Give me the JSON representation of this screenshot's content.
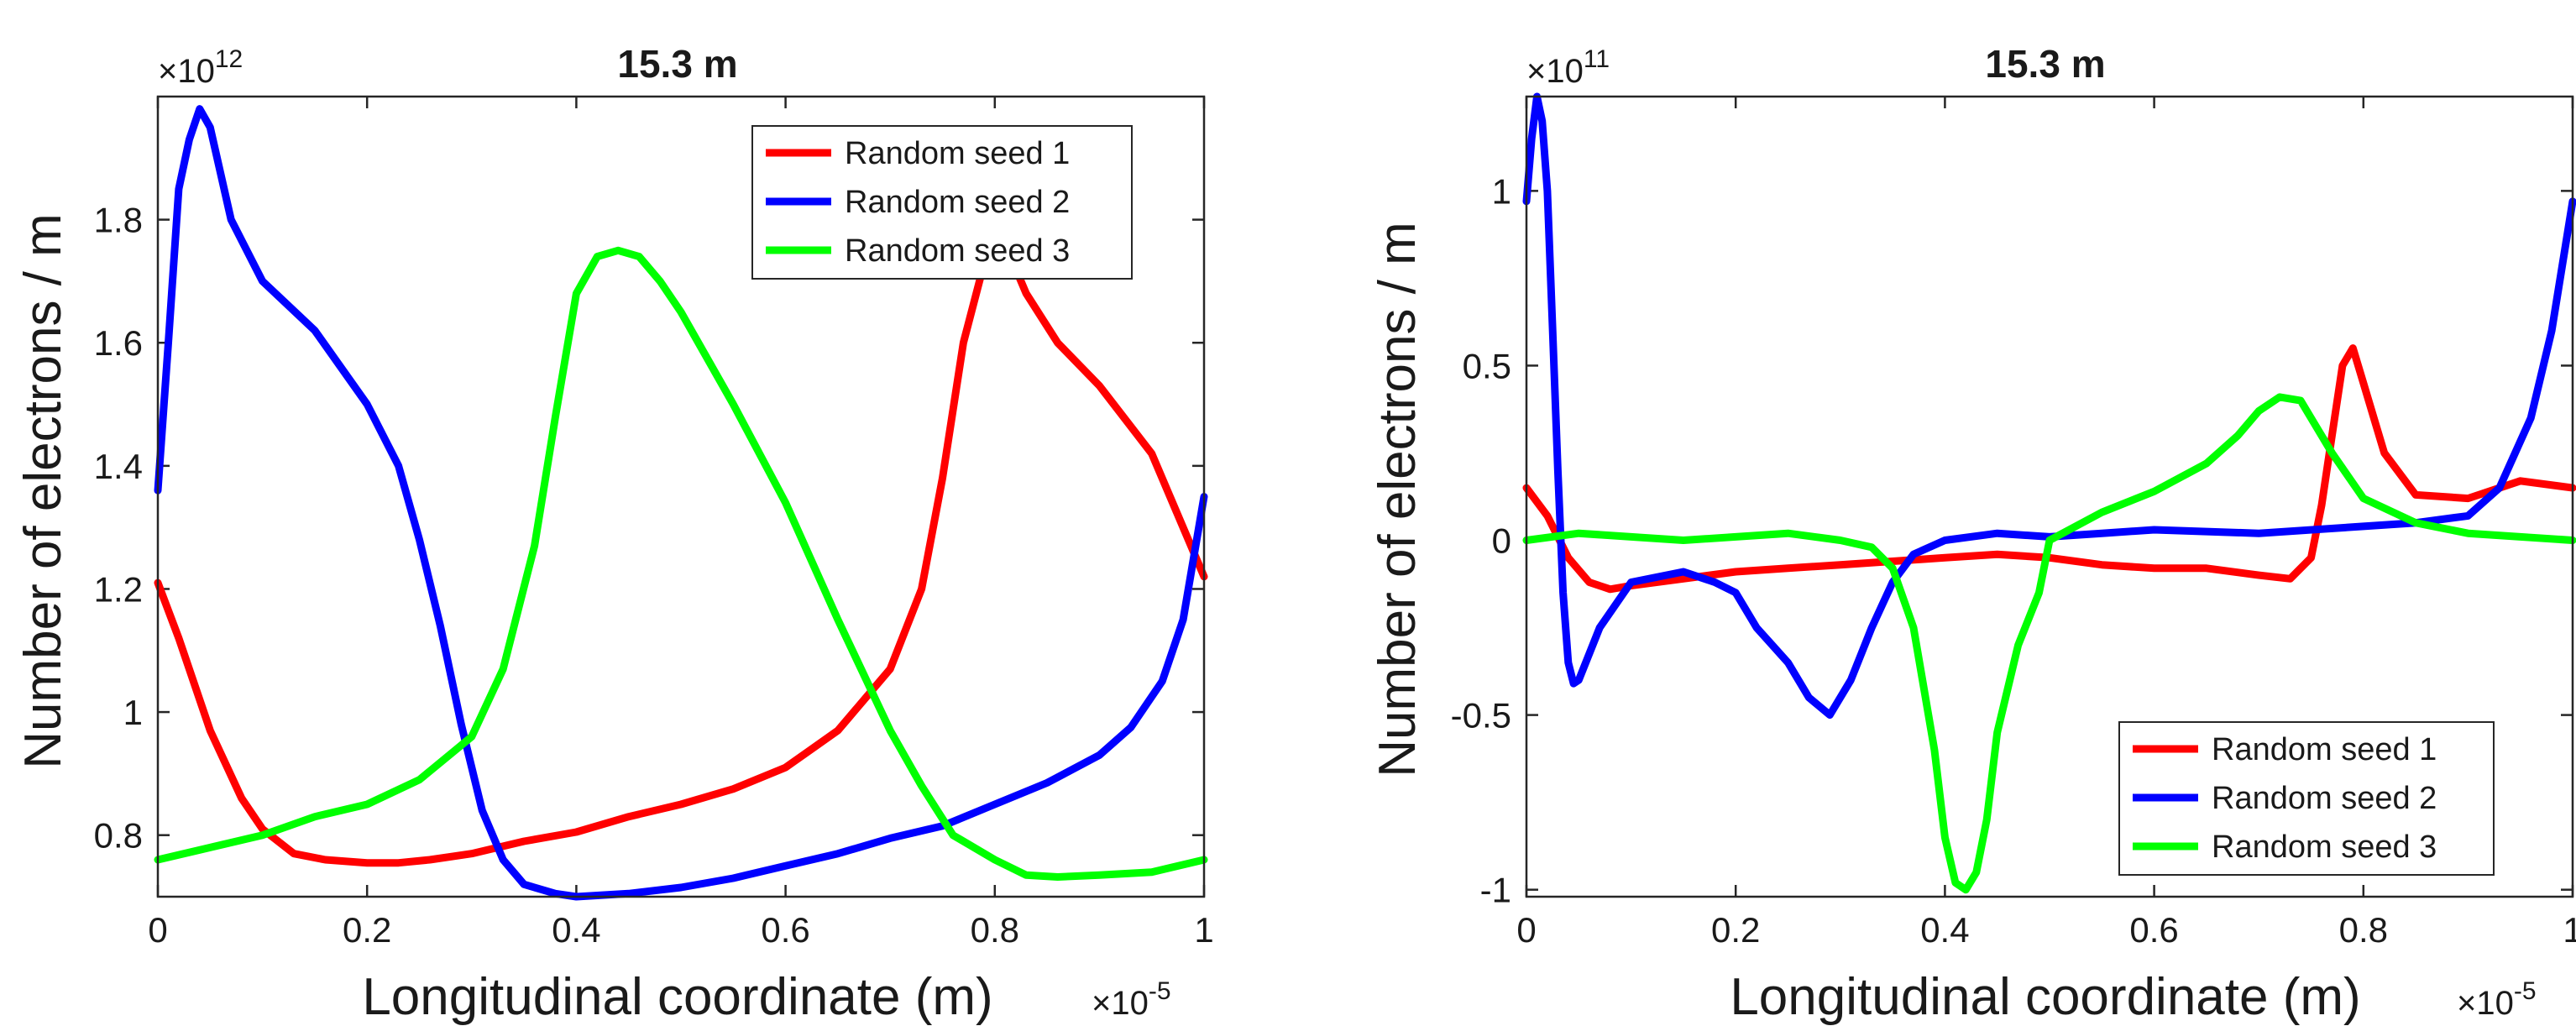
{
  "chart_data": [
    {
      "type": "line",
      "title": "15.3 m",
      "xlabel": "Longitudinal coordinate (m)",
      "ylabel": "Number of electrons / m",
      "x_multiplier": "×10",
      "x_exponent": "-5",
      "y_multiplier": "×10",
      "y_exponent": "12",
      "xlim": [
        0,
        1
      ],
      "ylim": [
        0.7,
        2.0
      ],
      "xticks": [
        0,
        0.2,
        0.4,
        0.6,
        0.8,
        1
      ],
      "xtick_labels": [
        "0",
        "0.2",
        "0.4",
        "0.6",
        "0.8",
        "1"
      ],
      "yticks": [
        0.8,
        1.0,
        1.2,
        1.4,
        1.6,
        1.8
      ],
      "ytick_labels": [
        "0.8",
        "1",
        "1.2",
        "1.4",
        "1.6",
        "1.8"
      ],
      "legend_position": "top-right",
      "series": [
        {
          "name": "Random seed 1",
          "color": "#ff0000",
          "x": [
            0,
            0.02,
            0.05,
            0.08,
            0.1,
            0.13,
            0.16,
            0.2,
            0.23,
            0.26,
            0.3,
            0.35,
            0.4,
            0.45,
            0.5,
            0.55,
            0.6,
            0.65,
            0.7,
            0.73,
            0.75,
            0.77,
            0.79,
            0.81,
            0.83,
            0.86,
            0.9,
            0.95,
            1.0
          ],
          "values": [
            1.21,
            1.12,
            0.97,
            0.86,
            0.81,
            0.77,
            0.76,
            0.755,
            0.755,
            0.76,
            0.77,
            0.79,
            0.805,
            0.83,
            0.85,
            0.875,
            0.91,
            0.97,
            1.07,
            1.2,
            1.38,
            1.6,
            1.73,
            1.76,
            1.68,
            1.6,
            1.53,
            1.42,
            1.22
          ]
        },
        {
          "name": "Random seed 2",
          "color": "#0000ff",
          "x": [
            0,
            0.01,
            0.02,
            0.03,
            0.04,
            0.05,
            0.07,
            0.1,
            0.15,
            0.2,
            0.23,
            0.25,
            0.27,
            0.29,
            0.31,
            0.33,
            0.35,
            0.38,
            0.4,
            0.45,
            0.5,
            0.55,
            0.6,
            0.65,
            0.7,
            0.75,
            0.8,
            0.85,
            0.9,
            0.93,
            0.96,
            0.98,
            1.0
          ],
          "values": [
            1.36,
            1.6,
            1.85,
            1.93,
            1.98,
            1.95,
            1.8,
            1.7,
            1.62,
            1.5,
            1.4,
            1.28,
            1.14,
            0.98,
            0.84,
            0.76,
            0.72,
            0.705,
            0.7,
            0.705,
            0.715,
            0.73,
            0.75,
            0.77,
            0.795,
            0.815,
            0.85,
            0.885,
            0.93,
            0.975,
            1.05,
            1.15,
            1.35
          ]
        },
        {
          "name": "Random seed 3",
          "color": "#00ff00",
          "x": [
            0,
            0.05,
            0.1,
            0.15,
            0.2,
            0.25,
            0.3,
            0.33,
            0.36,
            0.38,
            0.4,
            0.42,
            0.44,
            0.46,
            0.48,
            0.5,
            0.55,
            0.6,
            0.65,
            0.7,
            0.73,
            0.76,
            0.8,
            0.83,
            0.86,
            0.9,
            0.95,
            1.0
          ],
          "values": [
            0.76,
            0.78,
            0.8,
            0.83,
            0.85,
            0.89,
            0.96,
            1.07,
            1.27,
            1.48,
            1.68,
            1.74,
            1.75,
            1.74,
            1.7,
            1.65,
            1.5,
            1.34,
            1.15,
            0.97,
            0.88,
            0.8,
            0.76,
            0.735,
            0.732,
            0.735,
            0.74,
            0.76
          ]
        }
      ]
    },
    {
      "type": "line",
      "title": "15.3 m",
      "xlabel": "Longitudinal coordinate (m)",
      "ylabel": "Number of electrons / m",
      "x_multiplier": "×10",
      "x_exponent": "-5",
      "y_multiplier": "×10",
      "y_exponent": "11",
      "xlim": [
        0,
        1
      ],
      "ylim": [
        -1.02,
        1.27
      ],
      "xticks": [
        0,
        0.2,
        0.4,
        0.6,
        0.8,
        1
      ],
      "xtick_labels": [
        "0",
        "0.2",
        "0.4",
        "0.6",
        "0.8",
        "1"
      ],
      "yticks": [
        -1,
        -0.5,
        0,
        0.5,
        1
      ],
      "ytick_labels": [
        "-1",
        "-0.5",
        "0",
        "0.5",
        "1"
      ],
      "legend_position": "bottom-right",
      "series": [
        {
          "name": "Random seed 1",
          "color": "#ff0000",
          "x": [
            0,
            0.02,
            0.04,
            0.06,
            0.08,
            0.1,
            0.15,
            0.2,
            0.25,
            0.3,
            0.35,
            0.4,
            0.45,
            0.5,
            0.55,
            0.6,
            0.65,
            0.7,
            0.73,
            0.75,
            0.76,
            0.77,
            0.78,
            0.79,
            0.8,
            0.82,
            0.85,
            0.9,
            0.95,
            1.0
          ],
          "values": [
            0.15,
            0.07,
            -0.05,
            -0.12,
            -0.14,
            -0.13,
            -0.11,
            -0.09,
            -0.08,
            -0.07,
            -0.06,
            -0.05,
            -0.04,
            -0.05,
            -0.07,
            -0.08,
            -0.08,
            -0.1,
            -0.11,
            -0.05,
            0.1,
            0.3,
            0.5,
            0.55,
            0.45,
            0.25,
            0.13,
            0.12,
            0.17,
            0.15
          ]
        },
        {
          "name": "Random seed 2",
          "color": "#0000ff",
          "x": [
            0,
            0.005,
            0.01,
            0.015,
            0.02,
            0.025,
            0.03,
            0.035,
            0.04,
            0.045,
            0.05,
            0.07,
            0.1,
            0.15,
            0.18,
            0.2,
            0.22,
            0.25,
            0.27,
            0.29,
            0.31,
            0.33,
            0.35,
            0.37,
            0.4,
            0.45,
            0.5,
            0.55,
            0.6,
            0.7,
            0.8,
            0.85,
            0.9,
            0.93,
            0.96,
            0.98,
            1.0
          ],
          "values": [
            0.97,
            1.15,
            1.27,
            1.2,
            1.0,
            0.6,
            0.2,
            -0.15,
            -0.35,
            -0.41,
            -0.4,
            -0.25,
            -0.12,
            -0.09,
            -0.12,
            -0.15,
            -0.25,
            -0.35,
            -0.45,
            -0.5,
            -0.4,
            -0.25,
            -0.12,
            -0.04,
            0.0,
            0.02,
            0.01,
            0.02,
            0.03,
            0.02,
            0.04,
            0.05,
            0.07,
            0.15,
            0.35,
            0.6,
            0.97
          ]
        },
        {
          "name": "Random seed 3",
          "color": "#00ff00",
          "x": [
            0,
            0.05,
            0.1,
            0.15,
            0.2,
            0.25,
            0.3,
            0.33,
            0.35,
            0.37,
            0.39,
            0.4,
            0.41,
            0.42,
            0.43,
            0.44,
            0.45,
            0.47,
            0.49,
            0.5,
            0.55,
            0.6,
            0.65,
            0.68,
            0.7,
            0.72,
            0.74,
            0.77,
            0.8,
            0.85,
            0.9,
            0.95,
            1.0
          ],
          "values": [
            0.0,
            0.02,
            0.01,
            0.0,
            0.01,
            0.02,
            0.0,
            -0.02,
            -0.08,
            -0.25,
            -0.6,
            -0.85,
            -0.98,
            -1.0,
            -0.95,
            -0.8,
            -0.55,
            -0.3,
            -0.15,
            0.0,
            0.08,
            0.14,
            0.22,
            0.3,
            0.37,
            0.41,
            0.4,
            0.25,
            0.12,
            0.05,
            0.02,
            0.01,
            0.0
          ]
        }
      ]
    }
  ]
}
